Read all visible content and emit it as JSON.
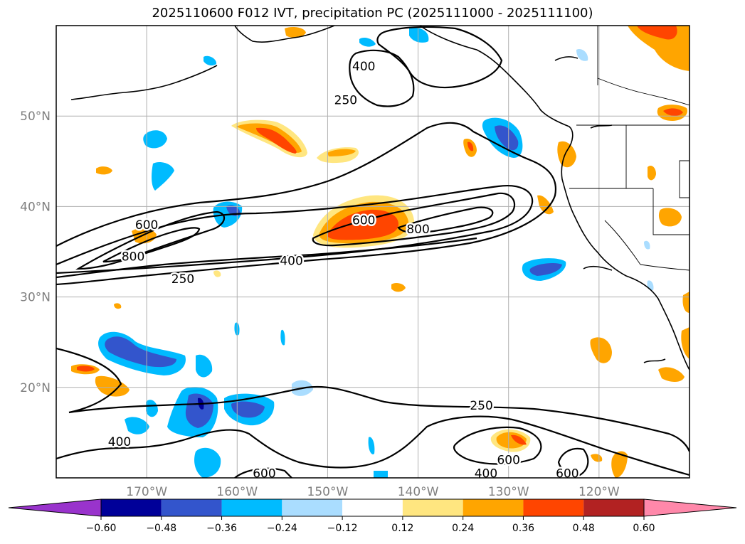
{
  "title": "2025110600 F012 IVT, precipitation PC (2025111000 - 2025111100)",
  "map": {
    "lon_range": [
      -180,
      -110
    ],
    "lat_range": [
      10,
      60
    ],
    "lon_ticks": [
      {
        "value": -170,
        "label": "170°W"
      },
      {
        "value": -160,
        "label": "160°W"
      },
      {
        "value": -150,
        "label": "150°W"
      },
      {
        "value": -140,
        "label": "140°W"
      },
      {
        "value": -130,
        "label": "130°W"
      },
      {
        "value": -120,
        "label": "120°W"
      }
    ],
    "lat_ticks": [
      {
        "value": 20,
        "label": "20°N"
      },
      {
        "value": 30,
        "label": "30°N"
      },
      {
        "value": 40,
        "label": "40°N"
      },
      {
        "value": 50,
        "label": "50°N"
      }
    ],
    "grid": true,
    "ivt_contour_levels": [
      250,
      400,
      600,
      800
    ],
    "contour_labels": [
      {
        "text": "250",
        "lon": -148,
        "lat": 51.8
      },
      {
        "text": "400",
        "lon": -146,
        "lat": 55.5
      },
      {
        "text": "600",
        "lon": -170,
        "lat": 38
      },
      {
        "text": "800",
        "lon": -171.5,
        "lat": 34.5
      },
      {
        "text": "250",
        "lon": -166,
        "lat": 32
      },
      {
        "text": "400",
        "lon": -154,
        "lat": 34
      },
      {
        "text": "600",
        "lon": -146,
        "lat": 38.5
      },
      {
        "text": "800",
        "lon": -140,
        "lat": 37.5
      },
      {
        "text": "250",
        "lon": -133,
        "lat": 18
      },
      {
        "text": "400",
        "lon": -173,
        "lat": 14
      },
      {
        "text": "600",
        "lon": -157,
        "lat": 10.5
      },
      {
        "text": "400",
        "lon": -132.5,
        "lat": 10.5
      },
      {
        "text": "600",
        "lon": -130,
        "lat": 12
      },
      {
        "text": "600",
        "lon": -123.5,
        "lat": 10.5
      }
    ]
  },
  "colorbar": {
    "levels": [
      "−0.60",
      "−0.48",
      "−0.36",
      "−0.24",
      "−0.12",
      "0.12",
      "0.24",
      "0.36",
      "0.48",
      "0.60"
    ],
    "colors": [
      "#9933cc",
      "#000099",
      "#3355cc",
      "#00bbff",
      "#aaddff",
      "#ffffff",
      "#ffe680",
      "#ffa500",
      "#ff4500",
      "#b22222",
      "#ff88aa"
    ],
    "extend": "both"
  }
}
